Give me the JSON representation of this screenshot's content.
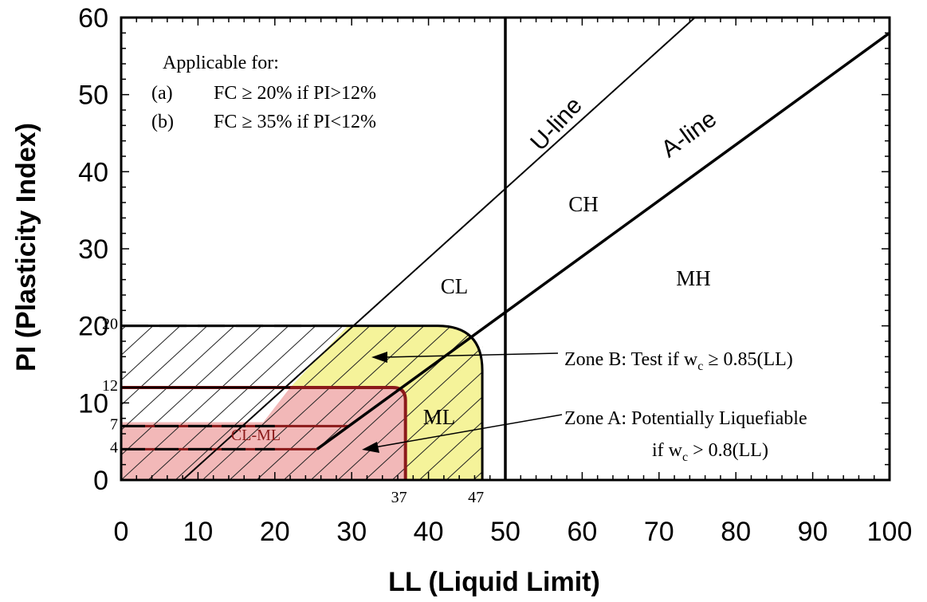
{
  "chart_data": {
    "type": "line",
    "title": "",
    "xlabel": "LL (Liquid Limit)",
    "ylabel": "PI (Plasticity Index)",
    "xlim": [
      0,
      100
    ],
    "ylim": [
      0,
      60
    ],
    "xticks": [
      0,
      10,
      20,
      30,
      40,
      50,
      60,
      70,
      80,
      90,
      100
    ],
    "yticks": [
      0,
      10,
      20,
      30,
      40,
      50,
      60
    ],
    "yticklabels": [
      "0",
      "10",
      "20",
      "30",
      "40",
      "50",
      "60"
    ],
    "extra_yticks": [
      4,
      7,
      12,
      20
    ],
    "extra_yticklabels": [
      "4",
      "7",
      "12",
      "20"
    ],
    "extra_xticks": [
      37,
      47
    ],
    "extra_xticklabels": [
      "37",
      "47"
    ],
    "lines": [
      {
        "name": "U-line",
        "x": [
          8,
          75
        ],
        "y": [
          0,
          60.3
        ]
      },
      {
        "name": "A-line",
        "x": [
          25.5,
          100
        ],
        "y": [
          4,
          58
        ]
      }
    ],
    "vertical_line_x": 50,
    "zones": [
      {
        "label": "Zone A: Potentially Liquefiable",
        "condition": "if w",
        "condition_sub": "c",
        "condition_rest": " > 0.8(LL)",
        "ll_max": 37,
        "pi_max": 12,
        "color": "#f2b8b8"
      },
      {
        "label": "Zone B: Test if w",
        "label_sub": "c",
        "label_rest": " ≥ 0.85(LL)",
        "ll_max": 47,
        "pi_max": 20,
        "color": "#f5f39a"
      }
    ],
    "regions": [
      "CL",
      "CH",
      "MH",
      "ML",
      "CL-ML"
    ],
    "note": {
      "heading": "Applicable for:",
      "items": [
        {
          "tag": "(a)",
          "text": "FC ≥ 20% if PI>12%"
        },
        {
          "tag": "(b)",
          "text": "FC ≥ 35% if PI<12%"
        }
      ]
    }
  }
}
